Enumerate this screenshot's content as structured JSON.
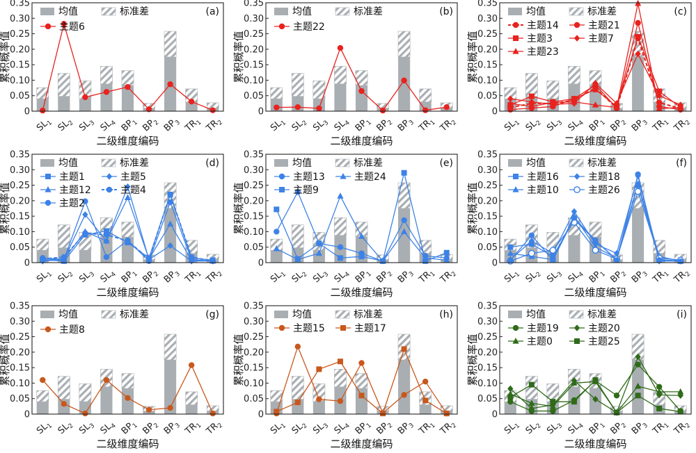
{
  "axis": {
    "ylabel": "累积概率值",
    "xlabel": "二级维度编码",
    "ylim": [
      0,
      0.35
    ],
    "yticks": [
      "0",
      "0.05",
      "0.10",
      "0.15",
      "0.20",
      "0.25",
      "0.30",
      "0.35"
    ]
  },
  "categories": [
    {
      "base": "SL",
      "sub": "1"
    },
    {
      "base": "SL",
      "sub": "2"
    },
    {
      "base": "SL",
      "sub": "3"
    },
    {
      "base": "SL",
      "sub": "4"
    },
    {
      "base": "BP",
      "sub": "1"
    },
    {
      "base": "BP",
      "sub": "2"
    },
    {
      "base": "BP",
      "sub": "3"
    },
    {
      "base": "TR",
      "sub": "1"
    },
    {
      "base": "TR",
      "sub": "2"
    }
  ],
  "legend_labels": {
    "mean": "均值",
    "std": "标准差"
  },
  "colors": {
    "bar": "#a9aeb2",
    "hatch": "#a9aeb2",
    "red": "#e8221e",
    "blue": "#3d82e6",
    "orange": "#c8581c",
    "green": "#2f6b19"
  },
  "chart_data": {
    "type": "bar+line",
    "bars": {
      "mean": [
        0.04,
        0.048,
        0.04,
        0.088,
        0.083,
        0.01,
        0.175,
        0.03,
        0.01
      ],
      "std": [
        0.036,
        0.074,
        0.058,
        0.057,
        0.048,
        0.015,
        0.083,
        0.042,
        0.017
      ]
    },
    "panels": [
      {
        "tag": "(a)",
        "color": "red",
        "series": [
          {
            "name": "主题6",
            "marker": "circle",
            "values": [
              0.002,
              0.282,
              0.045,
              0.062,
              0.078,
              0.006,
              0.087,
              0.031,
              0.003
            ]
          }
        ]
      },
      {
        "tag": "(b)",
        "color": "red",
        "series": [
          {
            "name": "主题22",
            "marker": "circle",
            "values": [
              0.012,
              0.013,
              0.009,
              0.204,
              0.065,
              0.002,
              0.099,
              0.003,
              0.013
            ]
          }
        ]
      },
      {
        "tag": "(c)",
        "color": "red",
        "series": [
          {
            "name": "主题14",
            "marker": "circle",
            "dashed": true,
            "values": [
              0.012,
              0.025,
              0.025,
              0.035,
              0.075,
              0.01,
              0.235,
              0.028,
              0.008
            ]
          },
          {
            "name": "主题21",
            "marker": "circle",
            "values": [
              0.005,
              0.01,
              0.015,
              0.04,
              0.085,
              0.01,
              0.285,
              0.015,
              0.005
            ]
          },
          {
            "name": "主题3",
            "marker": "square",
            "values": [
              0.02,
              0.048,
              0.03,
              0.04,
              0.07,
              0.015,
              0.24,
              0.064,
              0.012
            ]
          },
          {
            "name": "主题7",
            "marker": "diamond",
            "values": [
              0.04,
              0.03,
              0.022,
              0.025,
              0.09,
              0.025,
              0.185,
              0.05,
              0.02
            ]
          },
          {
            "name": "主题23",
            "marker": "triangle",
            "values": [
              0.025,
              0.015,
              0.028,
              0.03,
              0.02,
              0.012,
              0.348,
              0.008,
              0.012
            ]
          }
        ]
      },
      {
        "tag": "(d)",
        "color": "blue",
        "series": [
          {
            "name": "主题1",
            "marker": "square",
            "values": [
              0.01,
              0.005,
              0.09,
              0.102,
              0.065,
              0.015,
              0.22,
              0.015,
              0.008
            ]
          },
          {
            "name": "主题5",
            "marker": "diamond",
            "values": [
              0.005,
              0.01,
              0.155,
              0.07,
              0.245,
              0.01,
              0.055,
              0.005,
              0.005
            ]
          },
          {
            "name": "主题12",
            "marker": "triangle",
            "values": [
              0.008,
              0.012,
              0.1,
              0.07,
              0.21,
              0.012,
              0.125,
              0.008,
              0.005
            ]
          },
          {
            "name": "主题4",
            "marker": "circle",
            "dashed": true,
            "values": [
              0.012,
              0.018,
              0.095,
              0.09,
              0.07,
              0.012,
              0.22,
              0.018,
              0.005
            ]
          },
          {
            "name": "主题2",
            "marker": "circle",
            "values": [
              0.015,
              0.01,
              0.198,
              0.018,
              0.072,
              0.005,
              0.195,
              0.01,
              0.005
            ]
          }
        ]
      },
      {
        "tag": "(e)",
        "color": "blue",
        "series": [
          {
            "name": "主题13",
            "marker": "circle",
            "values": [
              0.1,
              0.228,
              0.062,
              0.05,
              0.03,
              0.005,
              0.137,
              0.022,
              0.015
            ]
          },
          {
            "name": "主题24",
            "marker": "triangle",
            "values": [
              0.045,
              0.01,
              0.03,
              0.215,
              0.085,
              0.005,
              0.1,
              0.015,
              0.008
            ]
          },
          {
            "name": "主题9",
            "marker": "square",
            "values": [
              0.172,
              0.012,
              0.062,
              0.015,
              0.02,
              0.005,
              0.29,
              0.005,
              0.032
            ]
          }
        ]
      },
      {
        "tag": "(f)",
        "color": "blue",
        "series": [
          {
            "name": "主题16",
            "marker": "square",
            "values": [
              0.05,
              0.06,
              0.02,
              0.14,
              0.07,
              0.01,
              0.25,
              0.01,
              0.005
            ]
          },
          {
            "name": "主题18",
            "marker": "diamond",
            "values": [
              0.01,
              0.07,
              0.03,
              0.165,
              0.06,
              0.03,
              0.28,
              0.005,
              0.005
            ]
          },
          {
            "name": "主题10",
            "marker": "triangle",
            "values": [
              0.03,
              0.02,
              0.01,
              0.15,
              0.05,
              0.015,
              0.255,
              0.02,
              0.005
            ]
          },
          {
            "name": "主题26",
            "marker": "open-circle",
            "values": [
              0.005,
              0.03,
              0.04,
              0.13,
              0.04,
              0.012,
              0.23,
              0.015,
              0.008
            ]
          },
          {
            "name": "",
            "marker": "circle",
            "values": [
              0.008,
              0.088,
              0.008,
              0.145,
              0.072,
              0.008,
              0.285,
              0.008,
              0.004
            ]
          }
        ]
      },
      {
        "tag": "(g)",
        "color": "orange",
        "series": [
          {
            "name": "主题8",
            "marker": "circle",
            "values": [
              0.11,
              0.033,
              0.002,
              0.11,
              0.052,
              0.014,
              0.02,
              0.158,
              0.002
            ]
          }
        ]
      },
      {
        "tag": "(h)",
        "color": "orange",
        "series": [
          {
            "name": "主题15",
            "marker": "circle",
            "values": [
              0.002,
              0.218,
              0.048,
              0.042,
              0.165,
              0.003,
              0.062,
              0.105,
              0.002
            ]
          },
          {
            "name": "主题17",
            "marker": "square",
            "values": [
              0.008,
              0.038,
              0.145,
              0.17,
              0.06,
              0.002,
              0.21,
              0.044,
              0.002
            ]
          }
        ]
      },
      {
        "tag": "(i)",
        "color": "green",
        "series": [
          {
            "name": "主题19",
            "marker": "circle",
            "values": [
              0.04,
              0.01,
              0.01,
              0.045,
              0.108,
              0.06,
              0.16,
              0.088,
              0.01
            ]
          },
          {
            "name": "主题20",
            "marker": "diamond",
            "values": [
              0.082,
              0.018,
              0.03,
              0.108,
              0.048,
              0.005,
              0.185,
              0.062,
              0.06
            ]
          },
          {
            "name": "主题0",
            "marker": "triangle",
            "values": [
              0.065,
              0.035,
              0.025,
              0.1,
              0.105,
              0.005,
              0.09,
              0.072,
              0.072
            ]
          },
          {
            "name": "主题25",
            "marker": "square",
            "values": [
              0.055,
              0.095,
              0.04,
              0.04,
              0.11,
              0.005,
              0.06,
              0.018,
              0.008
            ]
          }
        ]
      }
    ]
  }
}
